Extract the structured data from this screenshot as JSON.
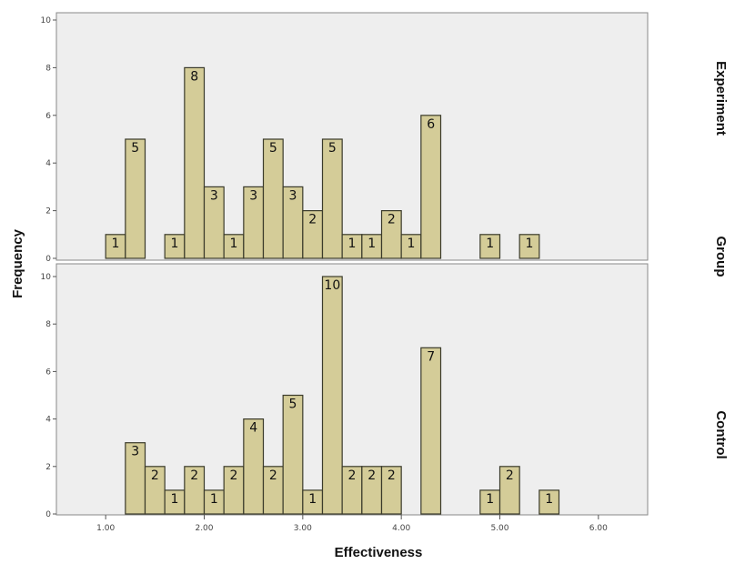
{
  "chart_data": {
    "type": "bar",
    "xlabel": "Effectiveness",
    "ylabel": "Frequency",
    "facet_label": "Group",
    "x_ticks": [
      "1.00",
      "2.00",
      "3.00",
      "4.00",
      "5.00",
      "6.00"
    ],
    "y_ticks": [
      "0",
      "2",
      "4",
      "6",
      "8",
      "10"
    ],
    "xlim": [
      0.5,
      6.5
    ],
    "ylim": [
      0,
      10
    ],
    "bar_color": "#d4cc98",
    "bar_stroke": "#3a3a2a",
    "panel_background": "#eeeeee",
    "grid": false,
    "panels": [
      {
        "name": "Experiment",
        "bins": [
          {
            "x": 1.1,
            "count": 1
          },
          {
            "x": 1.3,
            "count": 5
          },
          {
            "x": 1.7,
            "count": 1
          },
          {
            "x": 1.9,
            "count": 8
          },
          {
            "x": 2.1,
            "count": 3
          },
          {
            "x": 2.3,
            "count": 1
          },
          {
            "x": 2.5,
            "count": 3
          },
          {
            "x": 2.7,
            "count": 5
          },
          {
            "x": 2.9,
            "count": 3
          },
          {
            "x": 3.1,
            "count": 2
          },
          {
            "x": 3.3,
            "count": 5
          },
          {
            "x": 3.5,
            "count": 1
          },
          {
            "x": 3.7,
            "count": 1
          },
          {
            "x": 3.9,
            "count": 2
          },
          {
            "x": 4.1,
            "count": 1
          },
          {
            "x": 4.3,
            "count": 6
          },
          {
            "x": 4.9,
            "count": 1
          },
          {
            "x": 5.3,
            "count": 1
          }
        ]
      },
      {
        "name": "Control",
        "bins": [
          {
            "x": 1.3,
            "count": 3
          },
          {
            "x": 1.5,
            "count": 2
          },
          {
            "x": 1.7,
            "count": 1
          },
          {
            "x": 1.9,
            "count": 2
          },
          {
            "x": 2.1,
            "count": 1
          },
          {
            "x": 2.3,
            "count": 2
          },
          {
            "x": 2.5,
            "count": 4
          },
          {
            "x": 2.7,
            "count": 2
          },
          {
            "x": 2.9,
            "count": 5
          },
          {
            "x": 3.1,
            "count": 1
          },
          {
            "x": 3.3,
            "count": 10
          },
          {
            "x": 3.5,
            "count": 2
          },
          {
            "x": 3.7,
            "count": 2
          },
          {
            "x": 3.9,
            "count": 2
          },
          {
            "x": 4.3,
            "count": 7
          },
          {
            "x": 4.9,
            "count": 1
          },
          {
            "x": 5.1,
            "count": 2
          },
          {
            "x": 5.5,
            "count": 1
          }
        ]
      }
    ]
  }
}
